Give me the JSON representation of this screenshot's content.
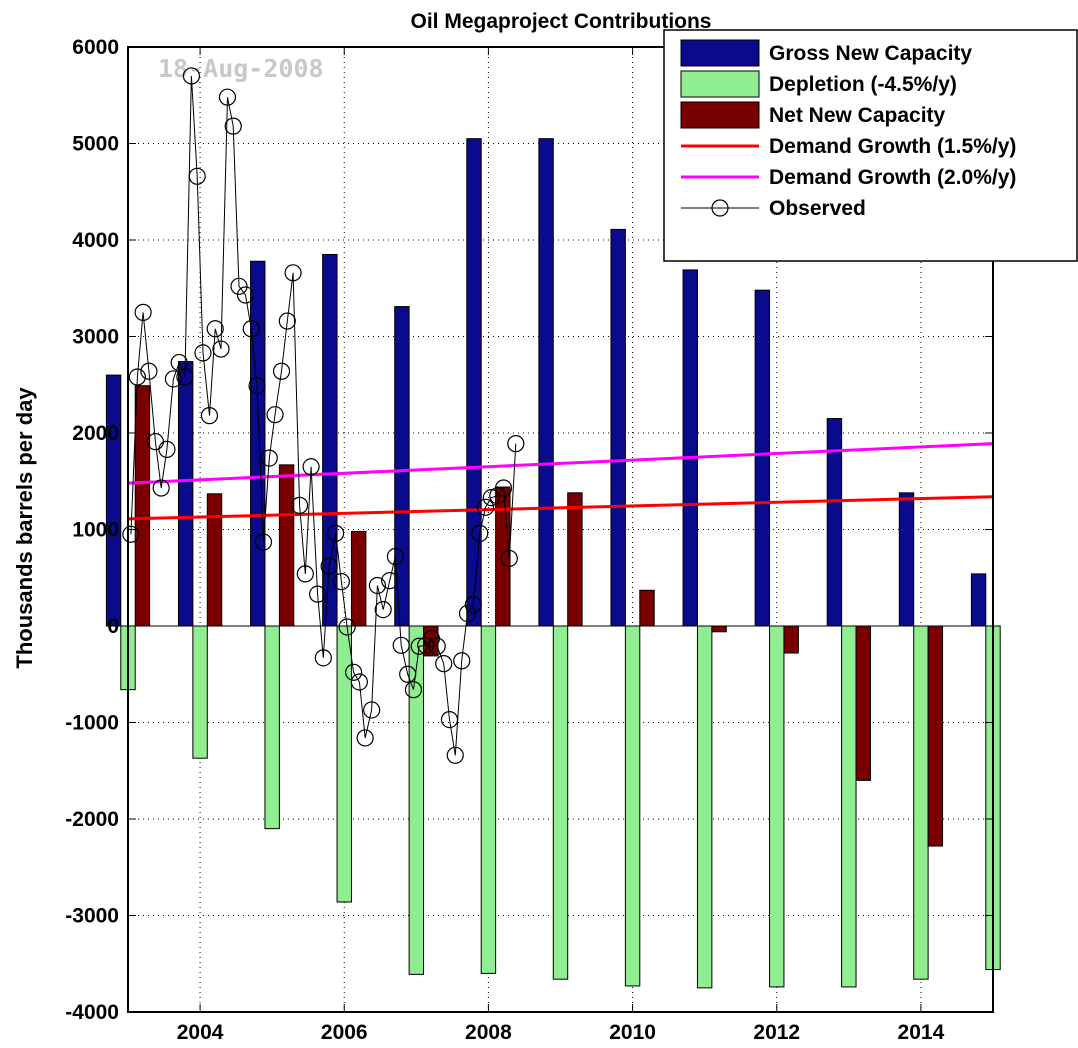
{
  "chart_data": {
    "type": "bar",
    "title": "Oil Megaproject Contributions",
    "xlabel": "",
    "ylabel": "Thousands barrels per day",
    "watermark": "18-Aug-2008",
    "xlim": [
      2003.0,
      2015.0
    ],
    "ylim": [
      -4000,
      6000
    ],
    "grid": true,
    "legend_position": "top-right",
    "xticks": [
      2004,
      2006,
      2008,
      2010,
      2012,
      2014
    ],
    "yticks": [
      -4000,
      -3000,
      -2000,
      -1000,
      0,
      1000,
      2000,
      3000,
      4000,
      5000,
      6000
    ],
    "categories": [
      2003,
      2004,
      2005,
      2006,
      2007,
      2008,
      2009,
      2010,
      2011,
      2012,
      2013,
      2014,
      2015
    ],
    "series": [
      {
        "name": "Gross New Capacity",
        "color": "#0a0a8c",
        "values": [
          2600,
          2740,
          3780,
          3850,
          3310,
          5050,
          5050,
          4110,
          3690,
          3480,
          2150,
          1380,
          540
        ]
      },
      {
        "name": "Depletion (-4.5%/y)",
        "color": "#90ee90",
        "values": [
          -660,
          -1370,
          -2100,
          -2860,
          -3610,
          -3600,
          -3660,
          -3730,
          -3750,
          -3740,
          -3740,
          -3660,
          -3560
        ]
      },
      {
        "name": "Net New Capacity",
        "color": "#7a0000",
        "values": [
          2490,
          1370,
          1670,
          980,
          -310,
          1440,
          1380,
          370,
          -60,
          -280,
          -1600,
          -2280,
          null
        ]
      }
    ],
    "lines": [
      {
        "name": "Demand Growth (1.5%/y)",
        "color": "#ff0000",
        "x": [
          2003.0,
          2015.0
        ],
        "y": [
          1110,
          1340
        ]
      },
      {
        "name": "Demand Growth (2.0%/y)",
        "color": "#ff00ff",
        "x": [
          2003.0,
          2015.0
        ],
        "y": [
          1480,
          1890
        ]
      }
    ],
    "observed": {
      "name": "Observed",
      "color": "#000000",
      "x": [
        2003.04,
        2003.13,
        2003.21,
        2003.29,
        2003.38,
        2003.46,
        2003.54,
        2003.63,
        2003.71,
        2003.79,
        2003.88,
        2003.96,
        2004.04,
        2004.13,
        2004.21,
        2004.29,
        2004.38,
        2004.46,
        2004.54,
        2004.63,
        2004.71,
        2004.79,
        2004.88,
        2004.96,
        2005.04,
        2005.13,
        2005.21,
        2005.29,
        2005.38,
        2005.46,
        2005.54,
        2005.63,
        2005.71,
        2005.79,
        2005.88,
        2005.96,
        2006.04,
        2006.13,
        2006.21,
        2006.29,
        2006.38,
        2006.46,
        2006.54,
        2006.63,
        2006.71,
        2006.79,
        2006.88,
        2006.96,
        2007.04,
        2007.13,
        2007.21,
        2007.29,
        2007.38,
        2007.46,
        2007.54,
        2007.63,
        2007.71,
        2007.79,
        2007.88,
        2007.96,
        2008.04,
        2008.13,
        2008.21,
        2008.29,
        2008.38
      ],
      "y": [
        950,
        2580,
        3250,
        2640,
        1910,
        1430,
        1830,
        2560,
        2730,
        2580,
        5700,
        4660,
        2830,
        2180,
        3080,
        2870,
        5480,
        5180,
        3520,
        3430,
        3080,
        2490,
        870,
        1740,
        2190,
        2640,
        3160,
        3660,
        1250,
        540,
        1650,
        330,
        -330,
        620,
        960,
        460,
        -10,
        -480,
        -580,
        -1160,
        -870,
        420,
        170,
        470,
        720,
        -200,
        -500,
        -660,
        -210,
        -200,
        -130,
        -210,
        -390,
        -970,
        -1340,
        -360,
        130,
        220,
        960,
        1230,
        1330,
        1350,
        1430,
        700,
        1890
      ]
    }
  }
}
